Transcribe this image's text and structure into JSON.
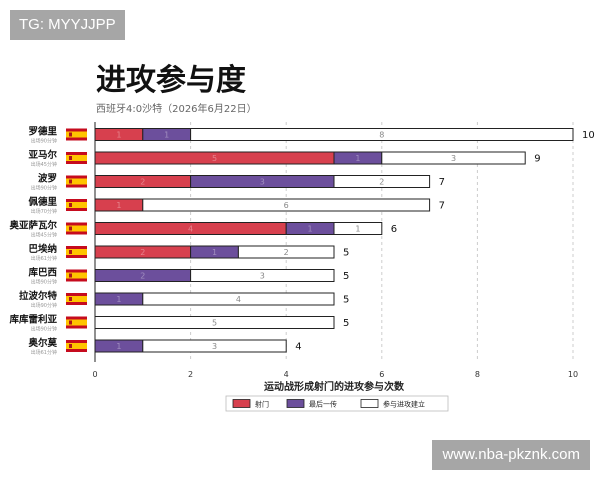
{
  "watermarks": {
    "top": "TG: MYYJJPP",
    "bottom": "www.nba-pkznk.com"
  },
  "colors": {
    "shot": "#d7404e",
    "assist": "#6c4f9c",
    "buildup": "#ffffff",
    "outline": "#222222",
    "grid": "#cccccc",
    "flag_red": "#c60b1e",
    "flag_yellow": "#ffc400"
  },
  "chart_data": {
    "type": "bar",
    "orientation": "horizontal",
    "stacked": true,
    "title": "进攻参与度",
    "subtitle": "西班牙4:0沙特（2026年6月22日）",
    "xlabel": "运动战形成射门的进攻参与次数",
    "xlim": [
      0,
      10
    ],
    "xticks": [
      "0",
      "2",
      "4",
      "6",
      "8",
      "10"
    ],
    "grid": true,
    "legend_position": "bottom",
    "categories": [
      "罗德里",
      "亚马尔",
      "波罗",
      "佩德里",
      "奥亚萨瓦尔",
      "巴埃纳",
      "库巴西",
      "拉波尔特",
      "库库雷利亚",
      "奥尔莫"
    ],
    "minutes": [
      "出场90分钟",
      "出场45分钟",
      "出场90分钟",
      "出场70分钟",
      "出场45分钟",
      "出场61分钟",
      "出场90分钟",
      "出场90分钟",
      "出场90分钟",
      "出场61分钟"
    ],
    "series": [
      {
        "name": "射门",
        "values": [
          1,
          5,
          2,
          1,
          4,
          2,
          0,
          0,
          0,
          0
        ]
      },
      {
        "name": "最后一传",
        "values": [
          1,
          1,
          3,
          0,
          1,
          1,
          2,
          1,
          0,
          1
        ]
      },
      {
        "name": "参与进攻建立",
        "values": [
          8,
          3,
          2,
          6,
          1,
          2,
          3,
          4,
          5,
          3
        ]
      }
    ],
    "totals": [
      10,
      9,
      7,
      7,
      6,
      5,
      5,
      5,
      5,
      4
    ]
  }
}
